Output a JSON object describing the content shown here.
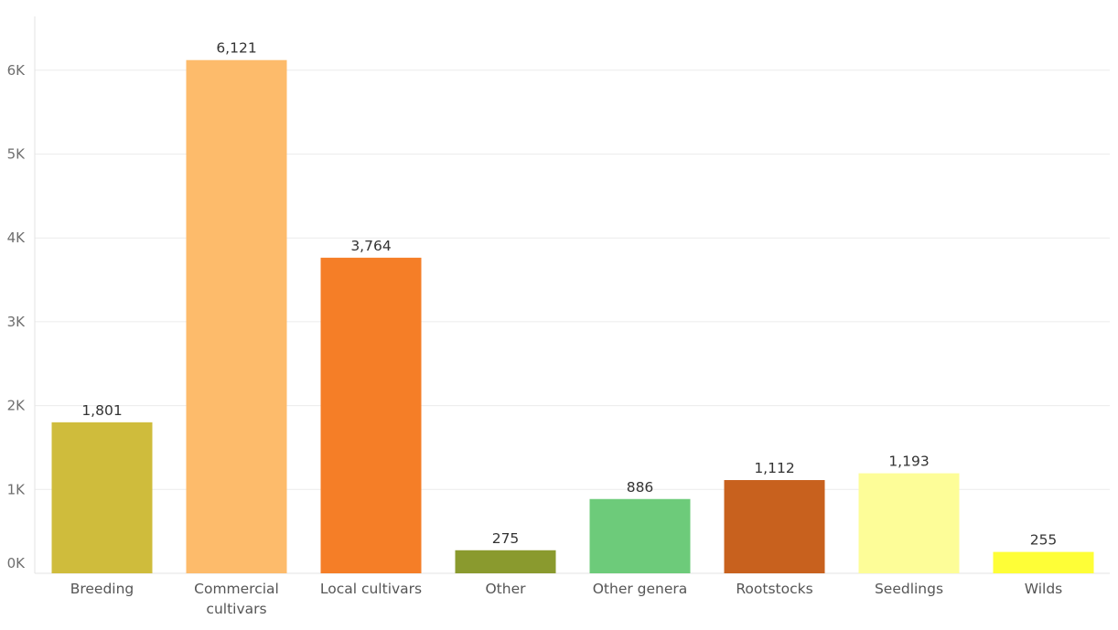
{
  "chart_data": {
    "type": "bar",
    "title": "",
    "xlabel": "",
    "ylabel": "",
    "categories": [
      [
        "Breeding"
      ],
      [
        "Commercial",
        "cultivars"
      ],
      [
        "Local cultivars"
      ],
      [
        "Other"
      ],
      [
        "Other genera"
      ],
      [
        "Rootstocks"
      ],
      [
        "Seedlings"
      ],
      [
        "Wilds"
      ]
    ],
    "values": [
      1801,
      6121,
      3764,
      275,
      886,
      1112,
      1193,
      255
    ],
    "value_labels": [
      "1,801",
      "6,121",
      "3,764",
      "275",
      "886",
      "1,112",
      "1,193",
      "255"
    ],
    "colors": [
      "#CFBC3C",
      "#FDBB6B",
      "#F57E27",
      "#8A9A2E",
      "#6DCB7A",
      "#C8611E",
      "#FDFD98",
      "#FEFE37"
    ],
    "y_ticks": [
      0,
      1000,
      2000,
      3000,
      4000,
      5000,
      6000
    ],
    "y_tick_labels": [
      "0K",
      "1K",
      "2K",
      "3K",
      "4K",
      "5K",
      "6K"
    ],
    "ylim": [
      0,
      6600
    ],
    "grid": true,
    "legend": "none"
  }
}
